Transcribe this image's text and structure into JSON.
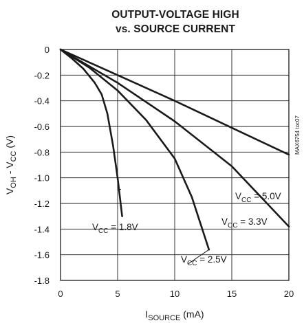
{
  "chart_data": {
    "type": "line",
    "title_lines": [
      "OUTPUT-VOLTAGE HIGH",
      "vs. SOURCE CURRENT"
    ],
    "xlabel": {
      "main": "I",
      "sub": "SOURCE",
      "unit": " (mA)"
    },
    "ylabel": {
      "v": "V",
      "sub1": "OH",
      "mid": " - V",
      "sub2": "CC",
      "unit": " (V)"
    },
    "xlim": [
      0,
      20
    ],
    "ylim": [
      -1.8,
      0
    ],
    "xticks": [
      "0",
      "5",
      "10",
      "15",
      "20"
    ],
    "xtick_values": [
      0,
      5,
      10,
      15,
      20
    ],
    "yticks": [
      "0",
      "-0.2",
      "-0.4",
      "-0.6",
      "-0.8",
      "-1.0",
      "-1.2",
      "-1.4",
      "-1.6",
      "-1.8"
    ],
    "ytick_values": [
      0,
      -0.2,
      -0.4,
      -0.6,
      -0.8,
      -1.0,
      -1.2,
      -1.4,
      -1.6,
      -1.8
    ],
    "grid": true,
    "side_note": "MAX6754 toc07",
    "series": [
      {
        "name": "VCC = 5.0V",
        "label": {
          "v": "V",
          "sub": "CC",
          "rest": " = 5.0V"
        },
        "x": [
          0,
          5,
          10,
          15,
          20
        ],
        "y": [
          0,
          -0.2,
          -0.4,
          -0.61,
          -0.82
        ]
      },
      {
        "name": "VCC = 3.3V",
        "label": {
          "v": "V",
          "sub": "CC",
          "rest": " = 3.3V"
        },
        "x": [
          0,
          5,
          10,
          15,
          20
        ],
        "y": [
          0,
          -0.26,
          -0.56,
          -0.91,
          -1.38
        ]
      },
      {
        "name": "VCC = 2.5V",
        "label": {
          "v": "V",
          "sub": "CC",
          "rest": " = 2.5V"
        },
        "x": [
          0,
          2.5,
          5,
          7.5,
          10,
          11.5,
          13
        ],
        "y": [
          0,
          -0.14,
          -0.32,
          -0.55,
          -0.85,
          -1.15,
          -1.56
        ]
      },
      {
        "name": "VCC = 1.8V",
        "label": {
          "v": "V",
          "sub": "CC",
          "rest": " = 1.8V"
        },
        "x": [
          0,
          1,
          2,
          3,
          3.6,
          4.1,
          4.6,
          5,
          5.4
        ],
        "y": [
          0,
          -0.07,
          -0.15,
          -0.26,
          -0.35,
          -0.5,
          -0.75,
          -1.0,
          -1.3
        ]
      }
    ]
  }
}
